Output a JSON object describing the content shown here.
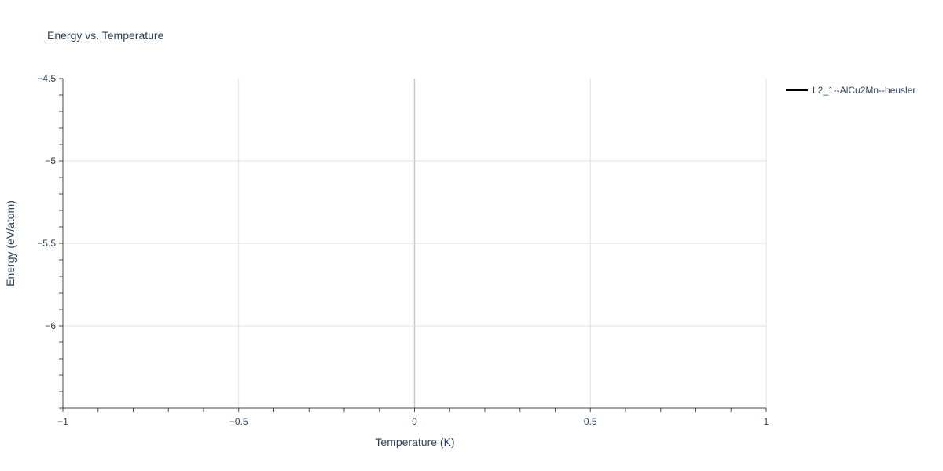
{
  "chart_data": {
    "type": "line",
    "title": "Energy vs. Temperature",
    "xlabel": "Temperature (K)",
    "ylabel": "Energy (eV/atom)",
    "xlim": [
      -1,
      1
    ],
    "ylim": [
      -6.5,
      -4.5
    ],
    "x_ticks": [
      -1,
      -0.5,
      0,
      0.5,
      1
    ],
    "x_tick_labels": [
      "−1",
      "−0.5",
      "0",
      "0.5",
      "1"
    ],
    "y_ticks": [
      -4.5,
      -5,
      -5.5,
      -6
    ],
    "y_tick_labels": [
      "−4.5",
      "−5",
      "−5.5",
      "−6"
    ],
    "minor_tick_step": 0.1,
    "grid": true,
    "legend_position": "top-right",
    "series": [
      {
        "name": "L2_1--AlCu2Mn--heusler",
        "color": "#000000",
        "x": [],
        "y": []
      }
    ]
  }
}
